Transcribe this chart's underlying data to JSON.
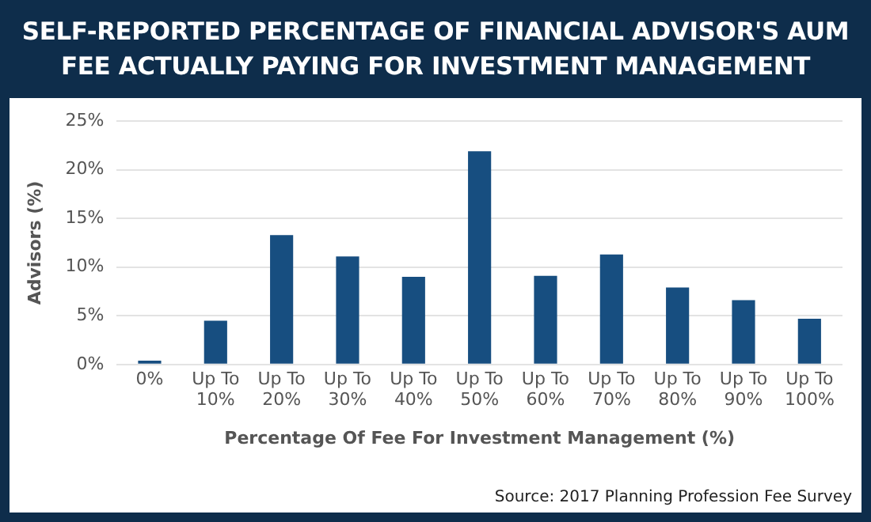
{
  "chart_data": {
    "type": "bar",
    "title": "SELF-REPORTED PERCENTAGE OF FINANCIAL ADVISOR'S AUM FEE ACTUALLY PAYING FOR INVESTMENT MANAGEMENT",
    "xlabel": "Percentage Of Fee For Investment Management (%)",
    "ylabel": "Advisors (%)",
    "categories": [
      "0%",
      "Up To 10%",
      "Up To 20%",
      "Up To 30%",
      "Up To 40%",
      "Up To 50%",
      "Up To 60%",
      "Up To 70%",
      "Up To 80%",
      "Up To 90%",
      "Up To 100%"
    ],
    "values": [
      0.4,
      4.5,
      13.3,
      11.1,
      9.0,
      21.9,
      9.1,
      11.3,
      7.9,
      6.6,
      4.7
    ],
    "color": "#174e80",
    "ylim": [
      0,
      25
    ],
    "yticks": [
      {
        "value": 0,
        "label": "0%"
      },
      {
        "value": 5,
        "label": "5%"
      },
      {
        "value": 10,
        "label": "10%"
      },
      {
        "value": 15,
        "label": "15%"
      },
      {
        "value": 20,
        "label": "20%"
      },
      {
        "value": 25,
        "label": "25%"
      }
    ],
    "grid": "y",
    "legend": false,
    "annotations": [
      "Source: 2017 Planning Profession Fee Survey"
    ]
  }
}
